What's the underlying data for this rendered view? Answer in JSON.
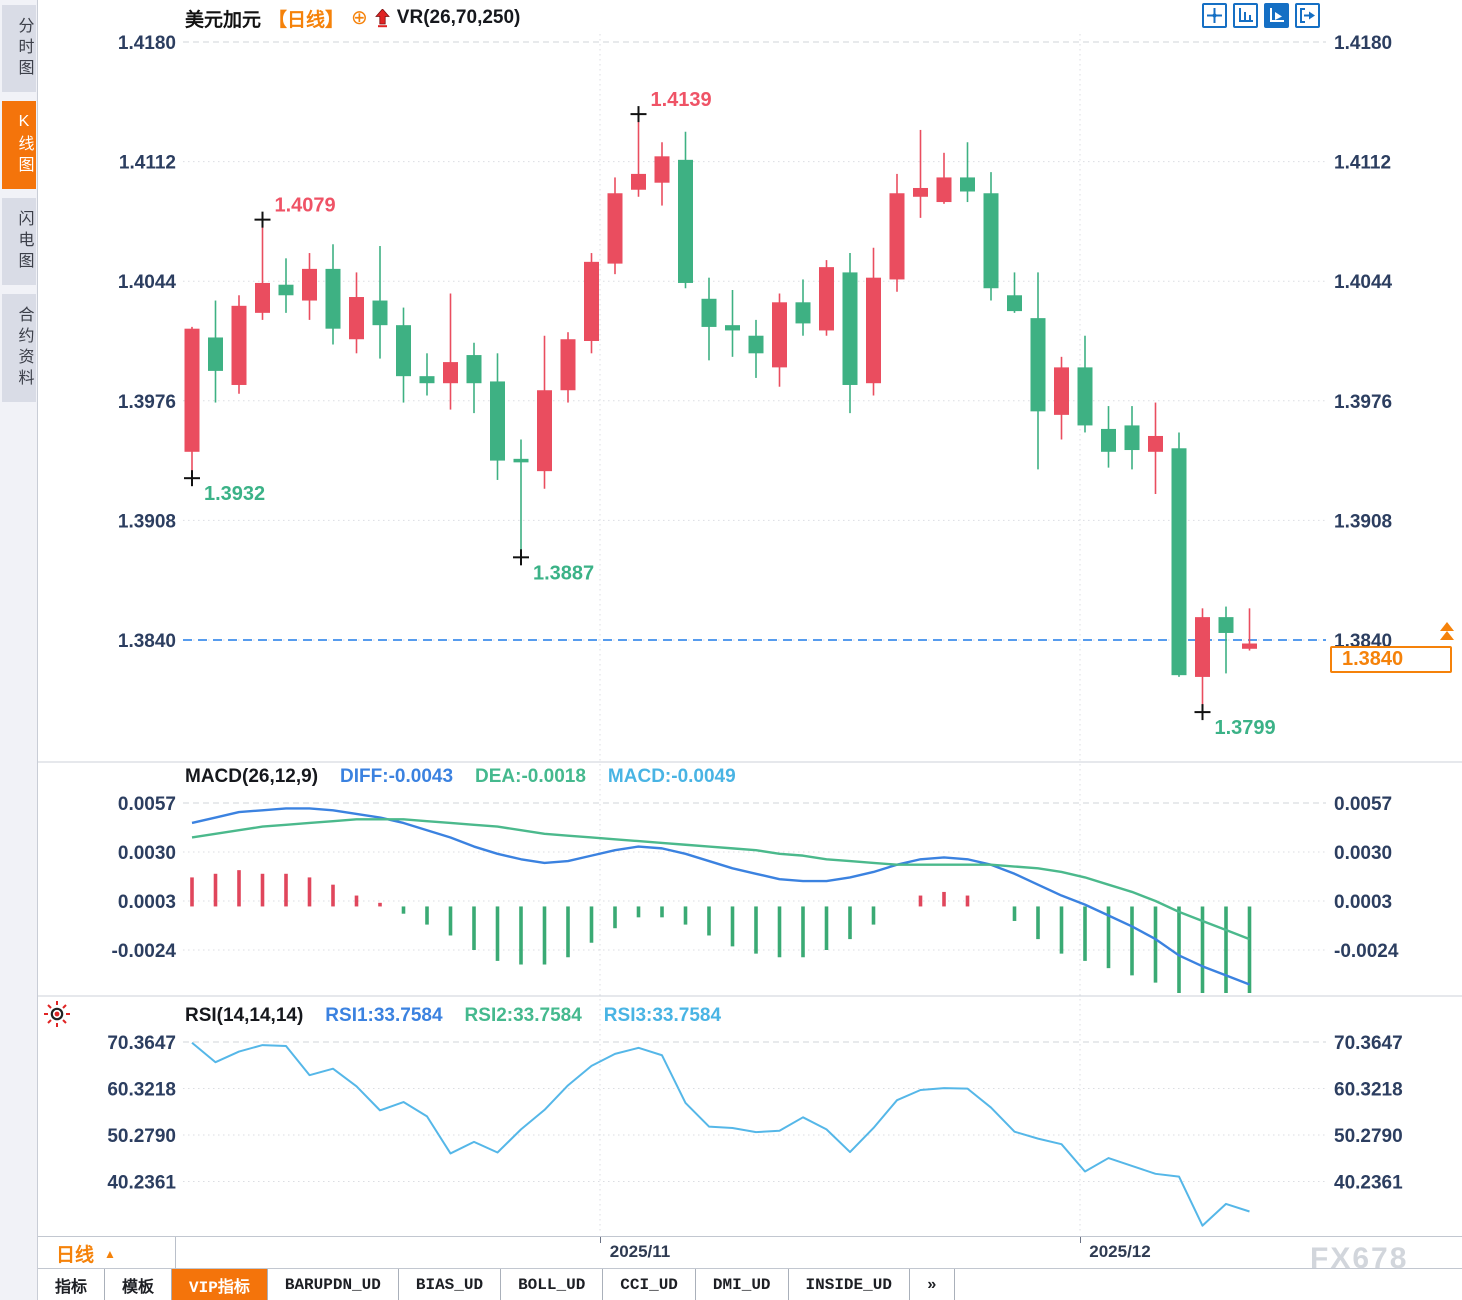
{
  "header": {
    "symbol": "美元加元",
    "period_tag": "【日线】",
    "plus_icon": "⊕",
    "overlay_indicator": "VR(26,70,250)"
  },
  "sidebar": {
    "items": [
      {
        "label": "分时图",
        "active": false
      },
      {
        "label": "K线图",
        "active": true
      },
      {
        "label": "闪电图",
        "active": false
      },
      {
        "label": "合约资料",
        "active": false
      }
    ]
  },
  "toolbar": {
    "icons": [
      "pan-cross-icon",
      "axis-scale-icon",
      "pointer-play-icon",
      "pane-export-icon"
    ],
    "active_index": 2
  },
  "price_panel": {
    "y_axis": [
      "1.4180",
      "1.4112",
      "1.4044",
      "1.3976",
      "1.3908",
      "1.3840"
    ],
    "current_price": {
      "label": "1.3840",
      "value": 1.384
    },
    "annotations": [
      {
        "text": "1.4079",
        "index": 3,
        "price": 1.4079,
        "kind": "high"
      },
      {
        "text": "1.4139",
        "index": 19,
        "price": 1.4139,
        "kind": "high"
      },
      {
        "text": "1.3932",
        "index": 0,
        "price": 1.3932,
        "kind": "low"
      },
      {
        "text": "1.3887",
        "index": 14,
        "price": 1.3887,
        "kind": "low"
      },
      {
        "text": "1.3799",
        "index": 43,
        "price": 1.3799,
        "kind": "low"
      }
    ]
  },
  "macd_panel": {
    "title": "MACD(26,12,9)",
    "diff_label": "DIFF:-0.0043",
    "dea_label": "DEA:-0.0018",
    "macd_label": "MACD:-0.0049",
    "y_axis": [
      "0.0057",
      "0.0030",
      "0.0003",
      "-0.0024"
    ]
  },
  "rsi_panel": {
    "title": "RSI(14,14,14)",
    "rsi1_label": "RSI1:33.7584",
    "rsi2_label": "RSI2:33.7584",
    "rsi3_label": "RSI3:33.7584",
    "y_axis": [
      "70.3647",
      "60.3218",
      "50.2790",
      "40.2361"
    ]
  },
  "x_axis": {
    "period_label": "日线",
    "period_triangle": "▲",
    "dates": [
      "2025/11",
      "2025/12"
    ]
  },
  "bottom_tabs": [
    "指标",
    "模板",
    "VIP指标",
    "BARUPDN_UD",
    "BIAS_UD",
    "BOLL_UD",
    "CCI_UD",
    "DMI_UD",
    "INSIDE_UD",
    "»"
  ],
  "active_tab": "VIP指标",
  "watermark": "FX678",
  "colors": {
    "candle_up": "#ea4d5f",
    "candle_down": "#3eb183",
    "macd_diff_line": "#3b82e0",
    "macd_dea_line": "#4bb98c",
    "macd_bar_up": "#e0465c",
    "macd_bar_down": "#3aaa74",
    "rsi_line": "#55b7e8",
    "accent_orange": "#f5820a",
    "toolbar_blue": "#156fc4",
    "axis_text": "#2c3e60",
    "grid": "#d9dde2",
    "current_price_blue": "#1f7ce8",
    "annotation_high": "#ef5366",
    "annotation_low": "#3bb287",
    "marker_cross": "#111111"
  },
  "chart_data": {
    "type": "candlestick",
    "title": "美元加元 日线 (USD/CAD daily)",
    "price_ticks": [
      1.418,
      1.4112,
      1.4044,
      1.3976,
      1.3908,
      1.384
    ],
    "current_price": 1.384,
    "candles": [
      [
        1.3947,
        1.4018,
        1.3932,
        1.4017
      ],
      [
        1.4012,
        1.4033,
        1.3975,
        1.3993
      ],
      [
        1.3985,
        1.4036,
        1.398,
        1.403
      ],
      [
        1.4026,
        1.4079,
        1.4022,
        1.4043
      ],
      [
        1.4042,
        1.4057,
        1.4026,
        1.4036
      ],
      [
        1.4033,
        1.406,
        1.4022,
        1.4051
      ],
      [
        1.4051,
        1.4065,
        1.4008,
        1.4017
      ],
      [
        1.4011,
        1.4049,
        1.4003,
        1.4035
      ],
      [
        1.4033,
        1.4064,
        1.4,
        1.4019
      ],
      [
        1.4019,
        1.4029,
        1.3975,
        1.399
      ],
      [
        1.399,
        1.4003,
        1.3979,
        1.3986
      ],
      [
        1.3986,
        1.4037,
        1.3971,
        1.3998
      ],
      [
        1.4002,
        1.4009,
        1.3969,
        1.3986
      ],
      [
        1.3987,
        1.4003,
        1.3931,
        1.3942
      ],
      [
        1.3943,
        1.3954,
        1.3887,
        1.3941
      ],
      [
        1.3936,
        1.4013,
        1.3926,
        1.3982
      ],
      [
        1.3982,
        1.4015,
        1.3975,
        1.4011
      ],
      [
        1.401,
        1.406,
        1.4003,
        1.4055
      ],
      [
        1.4054,
        1.4103,
        1.4048,
        1.4094
      ],
      [
        1.4096,
        1.4139,
        1.4092,
        1.4105
      ],
      [
        1.41,
        1.4123,
        1.4087,
        1.4115
      ],
      [
        1.4113,
        1.4129,
        1.404,
        1.4043
      ],
      [
        1.4034,
        1.4046,
        1.3999,
        1.4018
      ],
      [
        1.4019,
        1.4039,
        1.4001,
        1.4016
      ],
      [
        1.4013,
        1.4022,
        1.3989,
        1.4003
      ],
      [
        1.3995,
        1.4037,
        1.3984,
        1.4032
      ],
      [
        1.4032,
        1.4045,
        1.4013,
        1.402
      ],
      [
        1.4016,
        1.4056,
        1.4013,
        1.4052
      ],
      [
        1.4049,
        1.406,
        1.3969,
        1.3985
      ],
      [
        1.3986,
        1.4063,
        1.3979,
        1.4046
      ],
      [
        1.4045,
        1.4105,
        1.4038,
        1.4094
      ],
      [
        1.4092,
        1.413,
        1.408,
        1.4097
      ],
      [
        1.4089,
        1.4117,
        1.4088,
        1.4103
      ],
      [
        1.4103,
        1.4123,
        1.4089,
        1.4095
      ],
      [
        1.4094,
        1.4106,
        1.4033,
        1.404
      ],
      [
        1.4036,
        1.4049,
        1.4026,
        1.4027
      ],
      [
        1.4023,
        1.4049,
        1.3937,
        1.397
      ],
      [
        1.3968,
        1.4001,
        1.3954,
        1.3995
      ],
      [
        1.3995,
        1.4013,
        1.3958,
        1.3962
      ],
      [
        1.396,
        1.3973,
        1.3938,
        1.3947
      ],
      [
        1.3962,
        1.3973,
        1.3937,
        1.3948
      ],
      [
        1.3947,
        1.3975,
        1.3923,
        1.3956
      ],
      [
        1.3949,
        1.3958,
        1.3819,
        1.382
      ],
      [
        1.3819,
        1.3858,
        1.3799,
        1.3853
      ],
      [
        1.3853,
        1.3859,
        1.3821,
        1.3844
      ],
      [
        1.3835,
        1.3858,
        1.3834,
        1.3838
      ]
    ],
    "macd": {
      "params": [
        26,
        12,
        9
      ],
      "diff": [
        0.0046,
        0.0049,
        0.0052,
        0.0053,
        0.0054,
        0.0054,
        0.0053,
        0.0051,
        0.0049,
        0.0046,
        0.0042,
        0.0038,
        0.0033,
        0.0029,
        0.0026,
        0.0024,
        0.0025,
        0.0028,
        0.0031,
        0.0033,
        0.0032,
        0.0029,
        0.0025,
        0.0021,
        0.0018,
        0.0015,
        0.0014,
        0.0014,
        0.0016,
        0.0019,
        0.0023,
        0.0026,
        0.0027,
        0.0026,
        0.0023,
        0.0018,
        0.0012,
        0.0006,
        0.0001,
        -0.0005,
        -0.0011,
        -0.0018,
        -0.0027,
        -0.0033,
        -0.0038,
        -0.0043
      ],
      "dea": [
        0.0038,
        0.004,
        0.0042,
        0.0044,
        0.0045,
        0.0046,
        0.0047,
        0.0048,
        0.0048,
        0.0048,
        0.0047,
        0.0046,
        0.0045,
        0.0044,
        0.0042,
        0.004,
        0.0039,
        0.0038,
        0.0037,
        0.0036,
        0.0035,
        0.0034,
        0.0033,
        0.0032,
        0.0031,
        0.0029,
        0.0028,
        0.0026,
        0.0025,
        0.0024,
        0.0023,
        0.0023,
        0.0023,
        0.0023,
        0.0023,
        0.0022,
        0.0021,
        0.0019,
        0.0016,
        0.0012,
        0.0008,
        0.0003,
        -0.0003,
        -0.0008,
        -0.0013,
        -0.0018
      ],
      "ticks": [
        0.0057,
        0.003,
        0.0003,
        -0.0024
      ],
      "last_values": {
        "diff": -0.0043,
        "dea": -0.0018,
        "macd": -0.0049
      }
    },
    "rsi": {
      "params": [
        14,
        14,
        14
      ],
      "values": [
        70.2,
        66.0,
        68.3,
        69.7,
        69.5,
        63.2,
        64.6,
        60.8,
        55.6,
        57.4,
        54.3,
        46.3,
        48.8,
        46.5,
        51.5,
        55.7,
        61.0,
        65.2,
        67.8,
        69.1,
        67.5,
        57.2,
        52.1,
        51.8,
        50.9,
        51.2,
        54.1,
        51.5,
        46.6,
        51.8,
        57.8,
        60.0,
        60.4,
        60.3,
        56.2,
        51.0,
        49.5,
        48.3,
        42.4,
        45.3,
        43.6,
        41.9,
        41.3,
        30.7,
        35.4,
        33.76
      ],
      "ticks": [
        70.3647,
        60.3218,
        50.279,
        40.2361
      ],
      "last_value": 33.7584
    },
    "x_dates": [
      "2025/11",
      "2025/12"
    ],
    "legend_position": "top-left",
    "grid": true
  }
}
